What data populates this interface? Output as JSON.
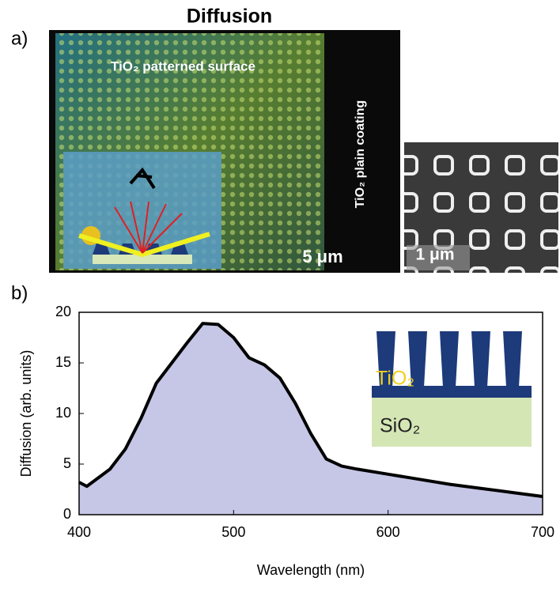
{
  "panel_a": {
    "label": "a)",
    "title": "Diffusion",
    "patterned_label": "TiO₂ patterned surface",
    "plain_label": "TiO₂ plain coating",
    "scale_bar": "5 μm",
    "sem_scale_bar": "1 μm"
  },
  "chart_data": {
    "type": "area",
    "panel_label": "b)",
    "xlabel": "Wavelength (nm)",
    "ylabel": "Diffusion (arb. units)",
    "x": [
      400,
      405,
      420,
      430,
      440,
      450,
      460,
      470,
      480,
      490,
      500,
      510,
      520,
      530,
      540,
      550,
      560,
      570,
      580,
      600,
      620,
      640,
      660,
      680,
      700
    ],
    "values": [
      3.2,
      2.8,
      4.5,
      6.5,
      9.5,
      13,
      15,
      17,
      18.9,
      18.8,
      17.5,
      15.5,
      14.8,
      13.5,
      11,
      8,
      5.5,
      4.8,
      4.5,
      4,
      3.5,
      3,
      2.6,
      2.2,
      1.8
    ],
    "color": "#000000",
    "fill": "#c6c6e6",
    "xlim": [
      400,
      700
    ],
    "ylim": [
      0,
      20
    ],
    "xticks": [
      400,
      500,
      600,
      700
    ],
    "yticks": [
      0,
      5,
      10,
      15,
      20
    ],
    "inset_labels": [
      "TiO₂",
      "SiO₂"
    ]
  }
}
